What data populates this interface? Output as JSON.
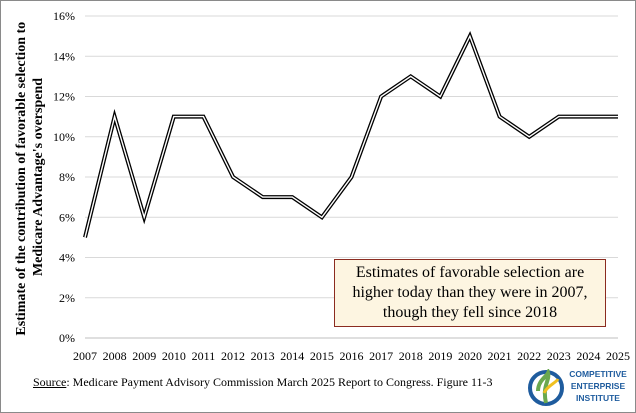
{
  "chart_data": {
    "type": "line",
    "title": "",
    "xlabel": "",
    "ylabel": "Estimate of the contribution of favorable selection to Medicare Advantage's overspend",
    "ylabel_lines": [
      "Estimate of the contribution of favorable selection to",
      "Medicare Advantage's overspend"
    ],
    "x": [
      "2007",
      "2008",
      "2009",
      "2010",
      "2011",
      "2012",
      "2013",
      "2014",
      "2015",
      "2016",
      "2017",
      "2018",
      "2019",
      "2020",
      "2021",
      "2022",
      "2023",
      "2024",
      "2025"
    ],
    "values": [
      5,
      11,
      6,
      11,
      11,
      8,
      7,
      7,
      6,
      8,
      12,
      13,
      12,
      15,
      11,
      10,
      11,
      11,
      11
    ],
    "y_unit": "%",
    "ylim": [
      0,
      16
    ],
    "yticks": [
      "0%",
      "2%",
      "4%",
      "6%",
      "8%",
      "10%",
      "12%",
      "14%",
      "16%"
    ],
    "grid": "horizontal",
    "line_style": "double black line"
  },
  "annotation": {
    "lines": [
      "Estimates of favorable selection are",
      "higher today than they were in 2007,",
      "though they fell  since 2018"
    ],
    "bg_color": "#fdf5e1",
    "border_color": "#8b2b20"
  },
  "source": {
    "label": "Source",
    "text": ": Medicare Payment Advisory Commission March 2025 Report to Congress. Figure 11-3"
  },
  "logo": {
    "lines": [
      "COMPETITIVE",
      "ENTERPRISE",
      "INSTITUTE"
    ],
    "color": "#1f5c9e",
    "accent": "#6aa84f"
  }
}
